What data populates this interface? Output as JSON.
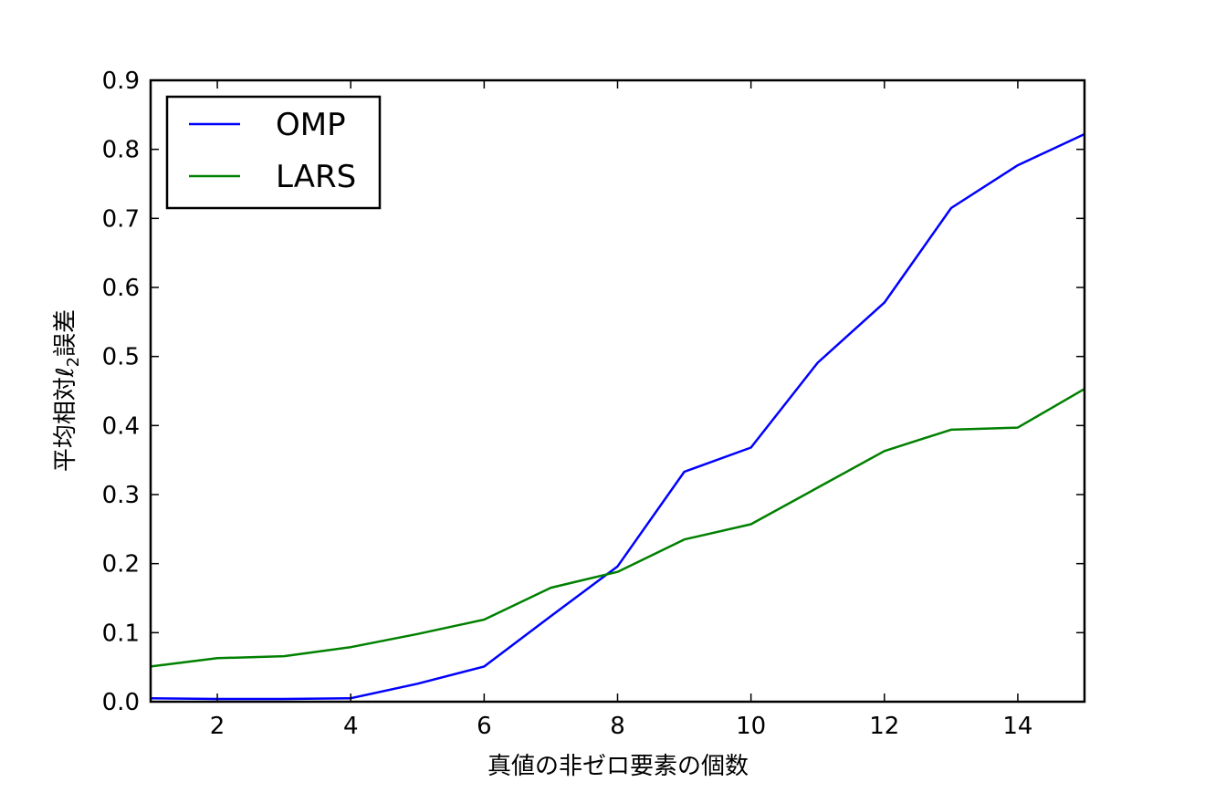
{
  "chart_data": {
    "type": "line",
    "title": "",
    "xlabel": "真値の非ゼロ要素の個数",
    "ylabel_parts": [
      "平均相対",
      "ℓ",
      "2",
      "誤差"
    ],
    "xlim": [
      1,
      15
    ],
    "ylim": [
      0.0,
      0.9
    ],
    "x_ticks": [
      2,
      4,
      6,
      8,
      10,
      12,
      14
    ],
    "y_ticks": [
      0.0,
      0.1,
      0.2,
      0.3,
      0.4,
      0.5,
      0.6,
      0.7,
      0.8,
      0.9
    ],
    "x_tick_labels": [
      "2",
      "4",
      "6",
      "8",
      "10",
      "12",
      "14"
    ],
    "y_tick_labels": [
      "0.0",
      "0.1",
      "0.2",
      "0.3",
      "0.4",
      "0.5",
      "0.6",
      "0.7",
      "0.8",
      "0.9"
    ],
    "grid": false,
    "legend_position": "top-left",
    "x": [
      1,
      2,
      3,
      4,
      5,
      6,
      7,
      8,
      9,
      10,
      11,
      12,
      13,
      14,
      15
    ],
    "series": [
      {
        "name": "OMP",
        "color": "#0000ff",
        "values": [
          0.005,
          0.004,
          0.004,
          0.005,
          0.026,
          0.051,
          0.124,
          0.196,
          0.333,
          0.368,
          0.491,
          0.578,
          0.715,
          0.777,
          0.822
        ]
      },
      {
        "name": "LARS",
        "color": "#008000",
        "values": [
          0.051,
          0.063,
          0.066,
          0.079,
          0.098,
          0.119,
          0.165,
          0.188,
          0.235,
          0.257,
          0.31,
          0.363,
          0.394,
          0.397,
          0.453
        ]
      }
    ]
  }
}
